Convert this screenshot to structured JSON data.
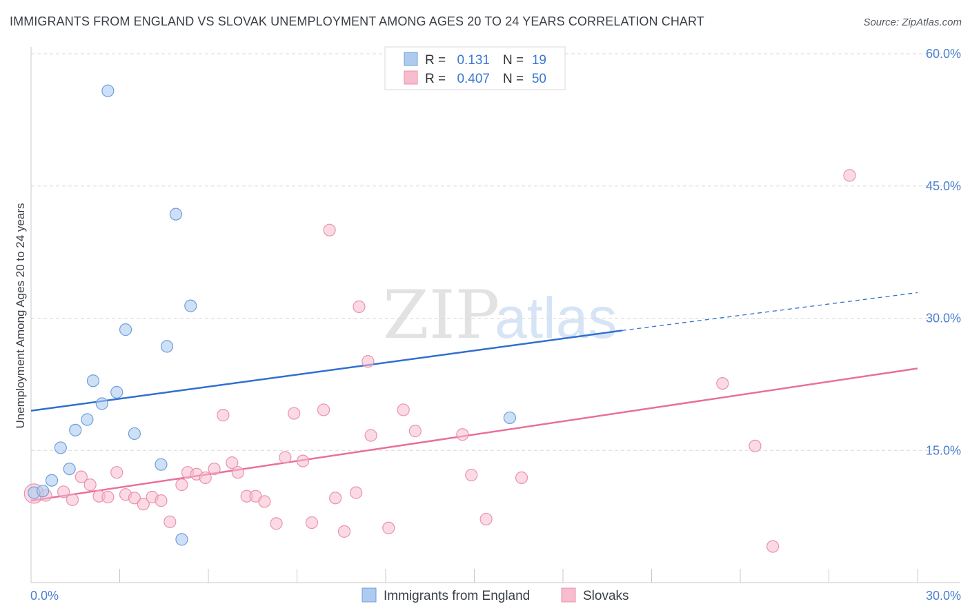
{
  "title": "IMMIGRANTS FROM ENGLAND VS SLOVAK UNEMPLOYMENT AMONG AGES 20 TO 24 YEARS CORRELATION CHART",
  "source": "Source: ZipAtlas.com",
  "watermark": {
    "zip": "ZIP",
    "atlas": "atlas"
  },
  "colors": {
    "england_fill": "#aecbef",
    "england_stroke": "#6e9ede",
    "england_line": "#2f6fd0",
    "slovak_fill": "#f7bccd",
    "slovak_stroke": "#e992ae",
    "slovak_line": "#e8709a",
    "value_text": "#3c78d0",
    "label_text": "#333333",
    "grid": "#d8d8d8"
  },
  "legend": {
    "rows": [
      {
        "r_label": "R =",
        "r_value": "0.131",
        "n_label": "N =",
        "n_value": "19"
      },
      {
        "r_label": "R =",
        "r_value": "0.407",
        "n_label": "N =",
        "n_value": "50"
      }
    ]
  },
  "chart_data": {
    "type": "scatter",
    "title": "IMMIGRANTS FROM ENGLAND VS SLOVAK UNEMPLOYMENT AMONG AGES 20 TO 24 YEARS CORRELATION CHART",
    "xlabel": "",
    "ylabel": "Unemployment Among Ages 20 to 24 years",
    "xlim": [
      0,
      30
    ],
    "ylim": [
      0,
      60
    ],
    "x_tick_labels": [
      "0.0%",
      "30.0%"
    ],
    "y_ticks": [
      15,
      30,
      45,
      60
    ],
    "y_tick_labels": [
      "15.0%",
      "30.0%",
      "45.0%",
      "60.0%"
    ],
    "grid": true,
    "legend_position": "bottom",
    "series": [
      {
        "name": "Immigrants from England",
        "points": [
          [
            0.1,
            10.2
          ],
          [
            0.4,
            10.4
          ],
          [
            0.7,
            11.6
          ],
          [
            1.0,
            15.3
          ],
          [
            1.3,
            12.9
          ],
          [
            1.5,
            17.3
          ],
          [
            1.9,
            18.5
          ],
          [
            2.1,
            22.9
          ],
          [
            2.4,
            20.3
          ],
          [
            2.6,
            55.8
          ],
          [
            2.9,
            21.6
          ],
          [
            3.2,
            28.7
          ],
          [
            3.5,
            16.9
          ],
          [
            4.4,
            13.4
          ],
          [
            4.6,
            26.8
          ],
          [
            4.9,
            41.8
          ],
          [
            5.4,
            31.4
          ],
          [
            5.1,
            4.9
          ],
          [
            16.2,
            18.7
          ]
        ],
        "trend": {
          "x": [
            0,
            20.0
          ],
          "y": [
            19.5,
            28.6
          ],
          "dashed_to": [
            30,
            32.9
          ]
        }
      },
      {
        "name": "Slovaks",
        "points": [
          [
            0.1,
            10.1
          ],
          [
            0.5,
            9.9
          ],
          [
            1.1,
            10.3
          ],
          [
            1.4,
            9.4
          ],
          [
            1.7,
            12.0
          ],
          [
            2.0,
            11.1
          ],
          [
            2.3,
            9.8
          ],
          [
            2.6,
            9.7
          ],
          [
            2.9,
            12.5
          ],
          [
            3.2,
            10.0
          ],
          [
            3.5,
            9.6
          ],
          [
            3.8,
            8.9
          ],
          [
            4.1,
            9.7
          ],
          [
            4.4,
            9.3
          ],
          [
            4.7,
            6.9
          ],
          [
            5.1,
            11.1
          ],
          [
            5.3,
            12.5
          ],
          [
            5.6,
            12.3
          ],
          [
            5.9,
            11.9
          ],
          [
            6.2,
            12.9
          ],
          [
            6.5,
            19.0
          ],
          [
            6.8,
            13.6
          ],
          [
            7.0,
            12.5
          ],
          [
            7.3,
            9.8
          ],
          [
            7.6,
            9.8
          ],
          [
            7.9,
            9.2
          ],
          [
            8.3,
            6.7
          ],
          [
            8.6,
            14.2
          ],
          [
            8.9,
            19.2
          ],
          [
            9.2,
            13.8
          ],
          [
            9.5,
            6.8
          ],
          [
            9.9,
            19.6
          ],
          [
            10.1,
            40.0
          ],
          [
            10.3,
            9.6
          ],
          [
            10.6,
            5.8
          ],
          [
            11.0,
            10.2
          ],
          [
            11.1,
            31.3
          ],
          [
            11.4,
            25.1
          ],
          [
            11.5,
            16.7
          ],
          [
            12.1,
            6.2
          ],
          [
            12.6,
            19.6
          ],
          [
            13.0,
            17.2
          ],
          [
            14.6,
            16.8
          ],
          [
            14.9,
            12.2
          ],
          [
            15.4,
            7.2
          ],
          [
            16.6,
            11.9
          ],
          [
            23.4,
            22.6
          ],
          [
            24.5,
            15.5
          ],
          [
            25.1,
            4.1
          ],
          [
            27.7,
            46.2
          ]
        ],
        "trend": {
          "x": [
            0,
            30
          ],
          "y": [
            9.3,
            24.3
          ]
        }
      }
    ]
  }
}
